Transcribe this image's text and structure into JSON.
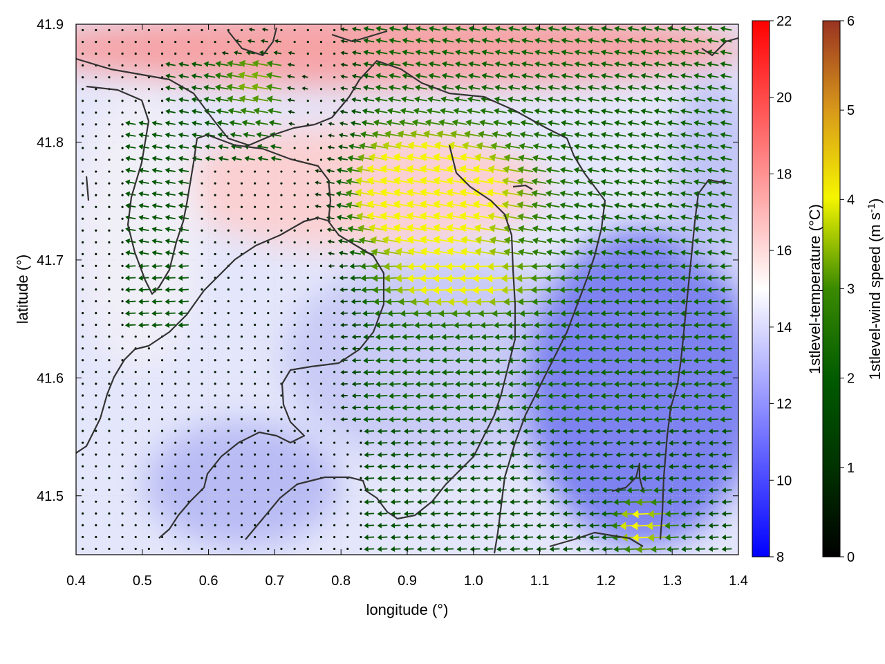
{
  "chart_data": {
    "type": "heatmap",
    "xlabel": "longitude (°)",
    "ylabel": "latitude (°)",
    "xlim": [
      0.4,
      1.4
    ],
    "ylim": [
      41.45,
      41.9
    ],
    "x_ticks": [
      "0.4",
      "0.5",
      "0.6",
      "0.7",
      "0.8",
      "0.9",
      "1.0",
      "1.1",
      "1.2",
      "1.3",
      "1.4"
    ],
    "y_ticks": [
      "41.5",
      "41.6",
      "41.7",
      "41.8",
      "41.9"
    ],
    "grid": true,
    "overlay": "wind vector arrows colored by wind speed, with black coastline/contour lines",
    "colorbars": [
      {
        "label": "1stlevel-temperature (°C)",
        "range": [
          8,
          22
        ],
        "ticks": [
          "8",
          "10",
          "12",
          "14",
          "16",
          "18",
          "20",
          "22"
        ],
        "colors": [
          "#0000ff",
          "#ffffff",
          "#ff0000"
        ]
      },
      {
        "label_main": "1stlevel-wind speed (m s",
        "label_sup": "-1",
        "label_end": ")",
        "range": [
          0,
          6
        ],
        "ticks": [
          "0",
          "1",
          "2",
          "3",
          "4",
          "5",
          "6"
        ],
        "colors": [
          "#000000",
          "#005500",
          "#3a8a00",
          "#8fc000",
          "#f5f500",
          "#d99a1a",
          "#993322"
        ]
      }
    ],
    "temperature_regions": [
      {
        "region": "north coast band (lat 41.84–41.9)",
        "temperature_c": 18.5
      },
      {
        "region": "central-west lobe (lon 0.55–0.95, lat 41.7–41.8)",
        "temperature_c": 16.5
      },
      {
        "region": "west interior",
        "temperature_c": 14.5
      },
      {
        "region": "central area",
        "temperature_c": 13.0
      },
      {
        "region": "southeast (lon 1.0–1.4, lat 41.45–41.7)",
        "temperature_c": 11.0
      },
      {
        "region": "south-west (lon 0.55–0.75, lat 41.45–41.55)",
        "temperature_c": 12.0
      }
    ],
    "wind_field": {
      "prevailing_direction": "from the east (arrows point west)",
      "max_speed_m_s": 4.0,
      "max_region": "around lon 0.9–1.0, lat 41.72–41.8",
      "weak_region": "western and southwestern areas (below 0.8 m/s)"
    }
  }
}
